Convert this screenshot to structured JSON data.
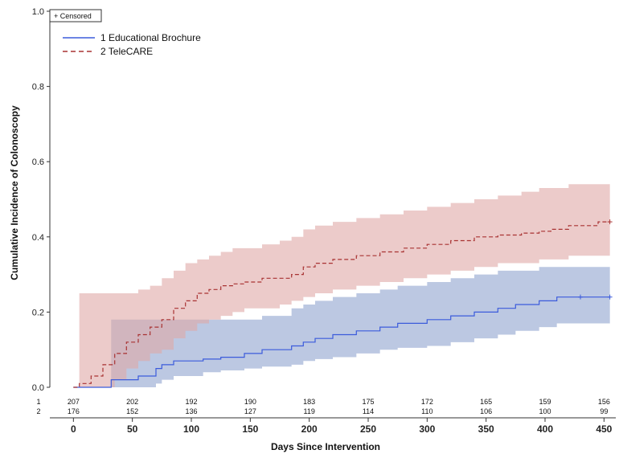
{
  "chart_data": {
    "type": "line",
    "subtype": "kaplan-meier-cumulative-incidence",
    "title": "",
    "xlabel": "Days Since Intervention",
    "ylabel": "Cumulative Incidence of Colonoscopy",
    "xlim": [
      -20,
      460
    ],
    "ylim": [
      0.0,
      1.0
    ],
    "xticks": [
      0,
      50,
      100,
      150,
      200,
      250,
      300,
      350,
      400,
      450
    ],
    "yticks": [
      "0.0",
      "0.2",
      "0.4",
      "0.6",
      "0.8",
      "1.0"
    ],
    "censored_label": "+ Censored",
    "legend_position": "top-left",
    "series": [
      {
        "name": "1 Educational Brochure",
        "color": "#3b5bdb",
        "band_color": "#8fa3cf",
        "line_style": "solid",
        "x": [
          0,
          25,
          32,
          55,
          70,
          75,
          85,
          110,
          125,
          145,
          160,
          185,
          195,
          205,
          220,
          240,
          260,
          275,
          300,
          320,
          340,
          360,
          375,
          395,
          410,
          455
        ],
        "y": [
          0.0,
          0.0,
          0.02,
          0.03,
          0.05,
          0.06,
          0.07,
          0.075,
          0.08,
          0.09,
          0.1,
          0.11,
          0.12,
          0.13,
          0.14,
          0.15,
          0.16,
          0.17,
          0.18,
          0.19,
          0.2,
          0.21,
          0.22,
          0.23,
          0.24,
          0.24
        ],
        "lower": [
          0.0,
          0.0,
          0.0,
          0.0,
          0.01,
          0.02,
          0.03,
          0.04,
          0.045,
          0.05,
          0.055,
          0.06,
          0.07,
          0.075,
          0.08,
          0.09,
          0.1,
          0.105,
          0.11,
          0.12,
          0.13,
          0.14,
          0.15,
          0.16,
          0.17,
          0.17
        ],
        "upper": [
          0.0,
          0.0,
          0.18,
          0.18,
          0.18,
          0.18,
          0.18,
          0.18,
          0.18,
          0.18,
          0.19,
          0.21,
          0.22,
          0.23,
          0.24,
          0.25,
          0.26,
          0.27,
          0.28,
          0.29,
          0.3,
          0.31,
          0.31,
          0.32,
          0.32,
          0.32
        ],
        "band_end": 430,
        "censored_x": [
          430,
          455
        ],
        "censored_y": [
          0.24,
          0.24
        ]
      },
      {
        "name": "2 TeleCARE",
        "color": "#a83232",
        "band_color": "#e0a9a6",
        "line_style": "dashed",
        "x": [
          0,
          5,
          15,
          25,
          35,
          45,
          55,
          65,
          75,
          85,
          95,
          105,
          115,
          125,
          135,
          145,
          160,
          175,
          185,
          195,
          205,
          220,
          240,
          260,
          280,
          300,
          320,
          340,
          360,
          380,
          395,
          405,
          420,
          445,
          455
        ],
        "y": [
          0.0,
          0.01,
          0.03,
          0.06,
          0.09,
          0.12,
          0.14,
          0.16,
          0.18,
          0.21,
          0.23,
          0.25,
          0.26,
          0.27,
          0.275,
          0.28,
          0.29,
          0.29,
          0.3,
          0.32,
          0.33,
          0.34,
          0.35,
          0.36,
          0.37,
          0.38,
          0.39,
          0.4,
          0.405,
          0.41,
          0.415,
          0.42,
          0.43,
          0.44,
          0.44
        ],
        "lower": [
          0.0,
          0.0,
          0.0,
          0.0,
          0.02,
          0.05,
          0.07,
          0.09,
          0.1,
          0.13,
          0.15,
          0.17,
          0.18,
          0.19,
          0.2,
          0.21,
          0.21,
          0.22,
          0.23,
          0.24,
          0.25,
          0.26,
          0.27,
          0.28,
          0.29,
          0.3,
          0.31,
          0.32,
          0.33,
          0.33,
          0.34,
          0.34,
          0.35,
          0.35,
          0.35
        ],
        "upper": [
          0.0,
          0.25,
          0.25,
          0.25,
          0.25,
          0.25,
          0.26,
          0.27,
          0.29,
          0.31,
          0.33,
          0.34,
          0.35,
          0.36,
          0.37,
          0.37,
          0.38,
          0.39,
          0.4,
          0.42,
          0.43,
          0.44,
          0.45,
          0.46,
          0.47,
          0.48,
          0.49,
          0.5,
          0.51,
          0.52,
          0.53,
          0.53,
          0.54,
          0.54,
          0.54
        ],
        "band_end": 455,
        "censored_x": [
          455
        ],
        "censored_y": [
          0.44
        ]
      }
    ],
    "risk_table": {
      "rows": [
        {
          "label": "1",
          "counts": [
            "207",
            "202",
            "192",
            "190",
            "183",
            "175",
            "172",
            "165",
            "159",
            "156"
          ]
        },
        {
          "label": "2",
          "counts": [
            "176",
            "152",
            "136",
            "127",
            "119",
            "114",
            "110",
            "106",
            "100",
            "99"
          ]
        }
      ]
    }
  }
}
